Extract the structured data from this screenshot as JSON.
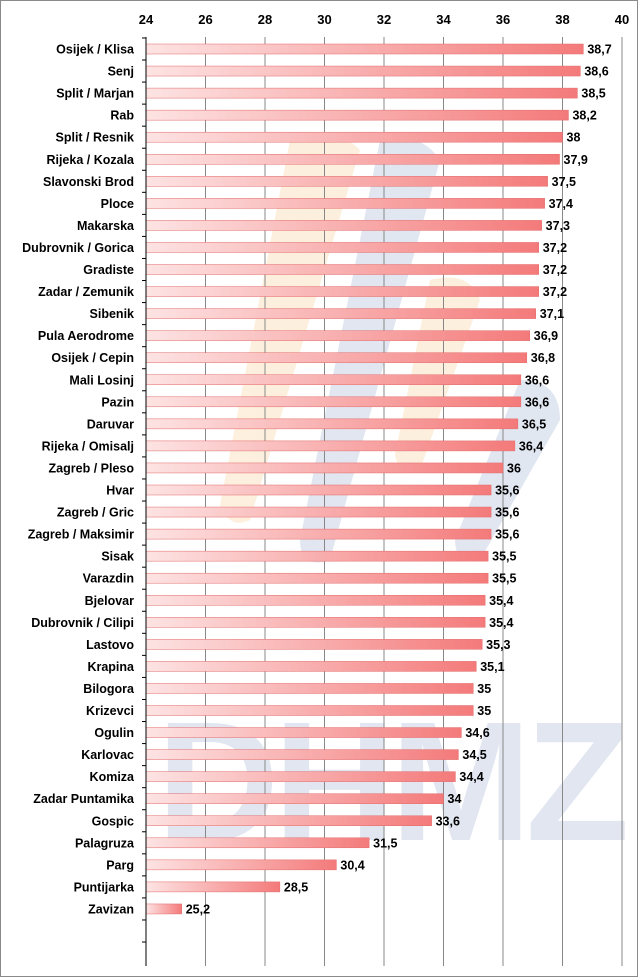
{
  "colors": {
    "bar_light": "#fde3e3",
    "bar_dark": "#f47a7a",
    "grid": "#888888",
    "watermark_blue": "#c9d3e6",
    "watermark_orange": "#fbe3c2"
  },
  "chart_data": {
    "type": "bar",
    "orientation": "horizontal",
    "title": "",
    "xlabel": "",
    "ylabel": "",
    "xlim": [
      24,
      40
    ],
    "xticks": [
      24,
      26,
      28,
      30,
      32,
      34,
      36,
      38,
      40
    ],
    "xaxis_position": "top",
    "grid": true,
    "watermark": "DHMZ",
    "categories": [
      "Osijek / Klisa",
      "Senj",
      "Split / Marjan",
      "Rab",
      "Split / Resnik",
      "Rijeka / Kozala",
      "Slavonski Brod",
      "Ploce",
      "Makarska",
      "Dubrovnik / Gorica",
      "Gradiste",
      "Zadar / Zemunik",
      "Sibenik",
      "Pula Aerodrome",
      "Osijek / Cepin",
      "Mali Losinj",
      "Pazin",
      "Daruvar",
      "Rijeka / Omisalj",
      "Zagreb / Pleso",
      "Hvar",
      "Zagreb / Gric",
      "Zagreb / Maksimir",
      "Sisak",
      "Varazdin",
      "Bjelovar",
      "Dubrovnik / Cilipi",
      "Lastovo",
      "Krapina",
      "Bilogora",
      "Krizevci",
      "Ogulin",
      "Karlovac",
      "Komiza",
      "Zadar Puntamika",
      "Gospic",
      "Palagruza",
      "Parg",
      "Puntijarka",
      "Zavizan"
    ],
    "values": [
      38.7,
      38.6,
      38.5,
      38.2,
      38,
      37.9,
      37.5,
      37.4,
      37.3,
      37.2,
      37.2,
      37.2,
      37.1,
      36.9,
      36.8,
      36.6,
      36.6,
      36.5,
      36.4,
      36,
      35.6,
      35.6,
      35.6,
      35.5,
      35.5,
      35.4,
      35.4,
      35.3,
      35.1,
      35,
      35,
      34.6,
      34.5,
      34.4,
      34,
      33.6,
      31.5,
      30.4,
      28.5,
      25.2
    ],
    "value_labels": [
      "38,7",
      "38,6",
      "38,5",
      "38,2",
      "38",
      "37,9",
      "37,5",
      "37,4",
      "37,3",
      "37,2",
      "37,2",
      "37,2",
      "37,1",
      "36,9",
      "36,8",
      "36,6",
      "36,6",
      "36,5",
      "36,4",
      "36",
      "35,6",
      "35,6",
      "35,6",
      "35,5",
      "35,5",
      "35,4",
      "35,4",
      "35,3",
      "35,1",
      "35",
      "35",
      "34,6",
      "34,5",
      "34,4",
      "34",
      "33,6",
      "31,5",
      "30,4",
      "28,5",
      "25,2"
    ]
  }
}
